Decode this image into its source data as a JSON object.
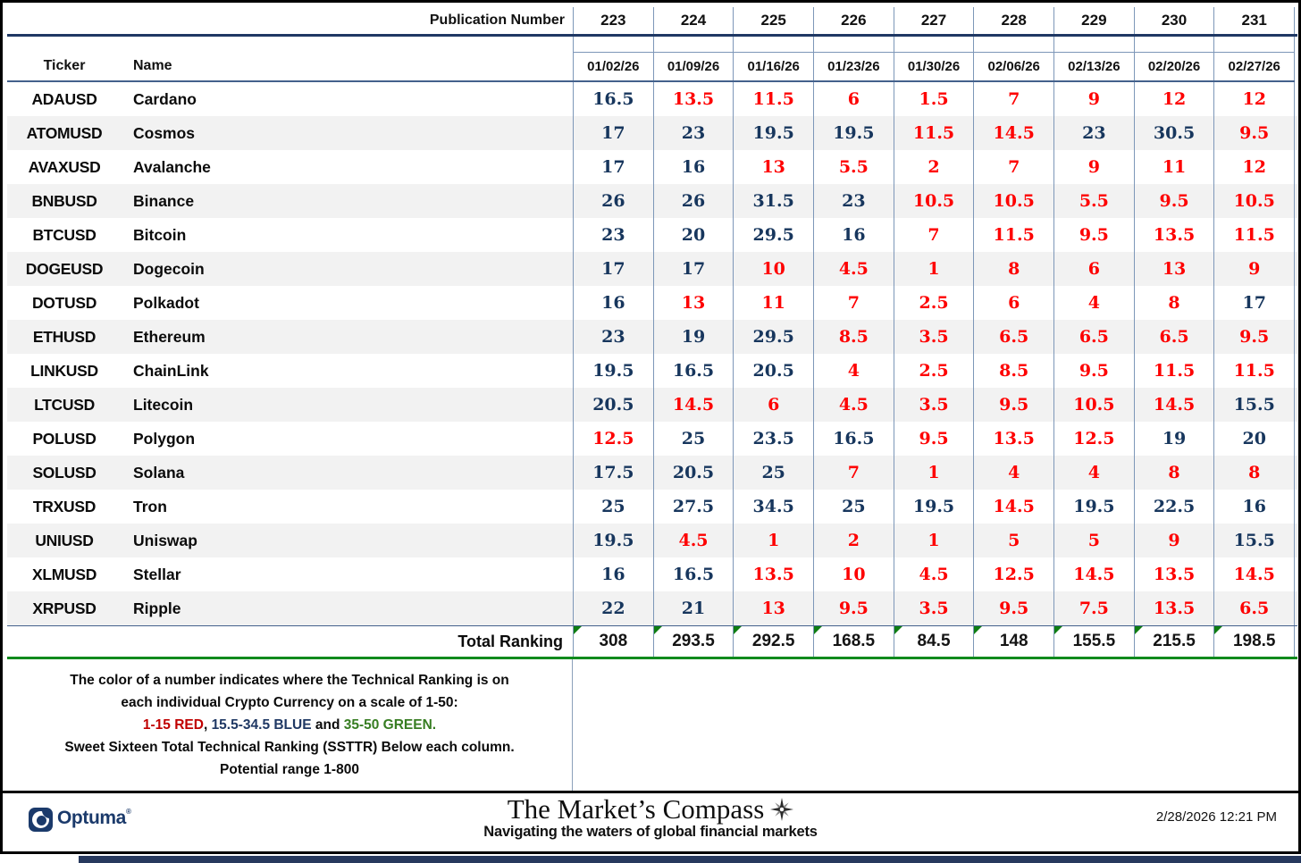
{
  "header": {
    "publication_label": "Publication Number",
    "publication_numbers": [
      "223",
      "224",
      "225",
      "226",
      "227",
      "228",
      "229",
      "230",
      "231"
    ],
    "ticker_label": "Ticker",
    "name_label": "Name",
    "dates": [
      "01/02/26",
      "01/09/26",
      "01/16/26",
      "01/23/26",
      "01/30/26",
      "02/06/26",
      "02/13/26",
      "02/20/26",
      "02/27/26"
    ]
  },
  "rows": [
    {
      "ticker": "ADAUSD",
      "name": "Cardano",
      "values": [
        "16.5",
        "13.5",
        "11.5",
        "6",
        "1.5",
        "7",
        "9",
        "12",
        "12"
      ],
      "colors": [
        "blue",
        "red",
        "red",
        "red",
        "red",
        "red",
        "red",
        "red",
        "red"
      ]
    },
    {
      "ticker": "ATOMUSD",
      "name": "Cosmos",
      "values": [
        "17",
        "23",
        "19.5",
        "19.5",
        "11.5",
        "14.5",
        "23",
        "30.5",
        "9.5"
      ],
      "colors": [
        "blue",
        "blue",
        "blue",
        "blue",
        "red",
        "red",
        "blue",
        "blue",
        "red"
      ]
    },
    {
      "ticker": "AVAXUSD",
      "name": "Avalanche",
      "values": [
        "17",
        "16",
        "13",
        "5.5",
        "2",
        "7",
        "9",
        "11",
        "12"
      ],
      "colors": [
        "blue",
        "blue",
        "red",
        "red",
        "red",
        "red",
        "red",
        "red",
        "red"
      ]
    },
    {
      "ticker": "BNBUSD",
      "name": "Binance",
      "values": [
        "26",
        "26",
        "31.5",
        "23",
        "10.5",
        "10.5",
        "5.5",
        "9.5",
        "10.5"
      ],
      "colors": [
        "blue",
        "blue",
        "blue",
        "blue",
        "red",
        "red",
        "red",
        "red",
        "red"
      ]
    },
    {
      "ticker": "BTCUSD",
      "name": "Bitcoin",
      "values": [
        "23",
        "20",
        "29.5",
        "16",
        "7",
        "11.5",
        "9.5",
        "13.5",
        "11.5"
      ],
      "colors": [
        "blue",
        "blue",
        "blue",
        "blue",
        "red",
        "red",
        "red",
        "red",
        "red"
      ]
    },
    {
      "ticker": "DOGEUSD",
      "name": "Dogecoin",
      "values": [
        "17",
        "17",
        "10",
        "4.5",
        "1",
        "8",
        "6",
        "13",
        "9"
      ],
      "colors": [
        "blue",
        "blue",
        "red",
        "red",
        "red",
        "red",
        "red",
        "red",
        "red"
      ]
    },
    {
      "ticker": "DOTUSD",
      "name": "Polkadot",
      "values": [
        "16",
        "13",
        "11",
        "7",
        "2.5",
        "6",
        "4",
        "8",
        "17"
      ],
      "colors": [
        "blue",
        "red",
        "red",
        "red",
        "red",
        "red",
        "red",
        "red",
        "blue"
      ]
    },
    {
      "ticker": "ETHUSD",
      "name": "Ethereum",
      "values": [
        "23",
        "19",
        "29.5",
        "8.5",
        "3.5",
        "6.5",
        "6.5",
        "6.5",
        "9.5"
      ],
      "colors": [
        "blue",
        "blue",
        "blue",
        "red",
        "red",
        "red",
        "red",
        "red",
        "red"
      ]
    },
    {
      "ticker": "LINKUSD",
      "name": "ChainLink",
      "values": [
        "19.5",
        "16.5",
        "20.5",
        "4",
        "2.5",
        "8.5",
        "9.5",
        "11.5",
        "11.5"
      ],
      "colors": [
        "blue",
        "blue",
        "blue",
        "red",
        "red",
        "red",
        "red",
        "red",
        "red"
      ]
    },
    {
      "ticker": "LTCUSD",
      "name": "Litecoin",
      "values": [
        "20.5",
        "14.5",
        "6",
        "4.5",
        "3.5",
        "9.5",
        "10.5",
        "14.5",
        "15.5"
      ],
      "colors": [
        "blue",
        "red",
        "red",
        "red",
        "red",
        "red",
        "red",
        "red",
        "blue"
      ]
    },
    {
      "ticker": "POLUSD",
      "name": "Polygon",
      "values": [
        "12.5",
        "25",
        "23.5",
        "16.5",
        "9.5",
        "13.5",
        "12.5",
        "19",
        "20"
      ],
      "colors": [
        "red",
        "blue",
        "blue",
        "blue",
        "red",
        "red",
        "red",
        "blue",
        "blue"
      ]
    },
    {
      "ticker": "SOLUSD",
      "name": "Solana",
      "values": [
        "17.5",
        "20.5",
        "25",
        "7",
        "1",
        "4",
        "4",
        "8",
        "8"
      ],
      "colors": [
        "blue",
        "blue",
        "blue",
        "red",
        "red",
        "red",
        "red",
        "red",
        "red"
      ]
    },
    {
      "ticker": "TRXUSD",
      "name": "Tron",
      "values": [
        "25",
        "27.5",
        "34.5",
        "25",
        "19.5",
        "14.5",
        "19.5",
        "22.5",
        "16"
      ],
      "colors": [
        "blue",
        "blue",
        "blue",
        "blue",
        "blue",
        "red",
        "blue",
        "blue",
        "blue"
      ]
    },
    {
      "ticker": "UNIUSD",
      "name": "Uniswap",
      "values": [
        "19.5",
        "4.5",
        "1",
        "2",
        "1",
        "5",
        "5",
        "9",
        "15.5"
      ],
      "colors": [
        "blue",
        "red",
        "red",
        "red",
        "red",
        "red",
        "red",
        "red",
        "blue"
      ]
    },
    {
      "ticker": "XLMUSD",
      "name": "Stellar",
      "values": [
        "16",
        "16.5",
        "13.5",
        "10",
        "4.5",
        "12.5",
        "14.5",
        "13.5",
        "14.5"
      ],
      "colors": [
        "blue",
        "blue",
        "red",
        "red",
        "red",
        "red",
        "red",
        "red",
        "red"
      ]
    },
    {
      "ticker": "XRPUSD",
      "name": "Ripple",
      "values": [
        "22",
        "21",
        "13",
        "9.5",
        "3.5",
        "9.5",
        "7.5",
        "13.5",
        "6.5"
      ],
      "colors": [
        "blue",
        "blue",
        "red",
        "red",
        "red",
        "red",
        "red",
        "red",
        "red"
      ]
    }
  ],
  "total": {
    "label": "Total Ranking",
    "values": [
      "308",
      "293.5",
      "292.5",
      "168.5",
      "84.5",
      "148",
      "155.5",
      "215.5",
      "198.5"
    ]
  },
  "legend": {
    "line1": "The color of a number indicates where the Technical Ranking is on",
    "line2": "each individual Crypto Currency on a scale of 1-50:",
    "line3_segments": [
      {
        "text": "1-15 RED",
        "color": "#C00000"
      },
      {
        "text": ", ",
        "color": "#0b0b0b"
      },
      {
        "text": "15.5-34.5 BLUE",
        "color": "#1F3864"
      },
      {
        "text": " and ",
        "color": "#0b0b0b"
      },
      {
        "text": "35-50 GREEN.",
        "color": "#377D22"
      }
    ],
    "line4": "Sweet Sixteen Total Technical Ranking (SSTTR) Below each column.",
    "line5": "Potential range 1-800"
  },
  "footer": {
    "brand": "Optuma",
    "brand_reg": "®",
    "title": "The Market’s Compass",
    "subtitle": "Navigating the waters of global financial markets",
    "timestamp": "2/28/2026 12:21 PM"
  },
  "colors": {
    "red": "#FE0000",
    "blue": "#17365D",
    "navy_line": "#1F3864",
    "green_triangle": "#0e7d12",
    "stripe": "#F2F2F2",
    "cell_border": "#7d97b8"
  }
}
